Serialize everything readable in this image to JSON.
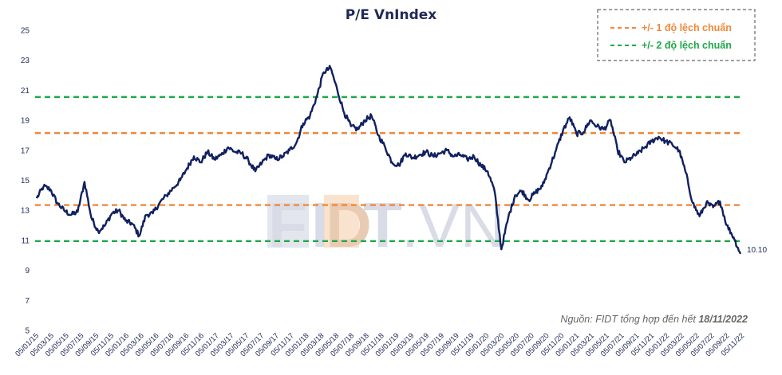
{
  "chart_data": {
    "type": "line",
    "title": "P/E VnIndex",
    "watermark": "FIDT.VN",
    "source_prefix": "Nguồn: FIDT tổng hợp đến hết ",
    "source_date": "18/11/2022",
    "yticks": [
      5,
      7,
      9,
      11,
      13,
      15,
      17,
      19,
      21,
      23,
      25
    ],
    "ylim": [
      5,
      25
    ],
    "xlabels": [
      "05/01/15",
      "05/03/15",
      "05/05/15",
      "05/07/15",
      "05/09/15",
      "05/11/15",
      "05/01/16",
      "05/03/16",
      "05/05/16",
      "05/07/16",
      "05/09/16",
      "05/11/16",
      "05/01/17",
      "05/03/17",
      "05/05/17",
      "05/07/17",
      "05/09/17",
      "05/11/17",
      "05/01/18",
      "05/03/18",
      "05/05/18",
      "05/07/18",
      "05/09/18",
      "05/11/18",
      "05/01/19",
      "05/03/19",
      "05/05/19",
      "05/07/19",
      "05/09/19",
      "05/11/19",
      "05/01/20",
      "05/03/20",
      "05/05/20",
      "05/07/20",
      "05/09/20",
      "05/11/20",
      "05/01/21",
      "05/03/21",
      "05/05/21",
      "05/07/21",
      "05/09/21",
      "05/11/21",
      "05/01/22",
      "05/03/22",
      "05/05/22",
      "05/07/22",
      "05/09/22",
      "05/11/22"
    ],
    "reference_lines": [
      {
        "label": "+/- 1 độ lệch chuẩn",
        "color": "#f0883a",
        "values": [
          18.15,
          13.35
        ]
      },
      {
        "label": "+/- 2 độ lệch chuẩn",
        "color": "#1fa84a",
        "values": [
          20.55,
          10.95
        ]
      }
    ],
    "series": [
      {
        "color": "#102060",
        "last_value_label": "10.10",
        "values": [
          13.8,
          14.6,
          14.4,
          13.5,
          13.0,
          12.7,
          12.9,
          14.9,
          12.5,
          11.6,
          12.0,
          12.8,
          13.0,
          12.3,
          12.1,
          11.3,
          12.7,
          12.8,
          13.5,
          14.0,
          14.5,
          15.0,
          15.8,
          16.6,
          16.2,
          16.9,
          16.4,
          16.7,
          17.2,
          16.9,
          16.8,
          16.3,
          15.6,
          16.2,
          16.7,
          16.4,
          16.6,
          17.0,
          17.5,
          18.8,
          19.3,
          20.6,
          22.2,
          22.5,
          21.0,
          19.5,
          18.6,
          18.4,
          19.0,
          19.3,
          18.0,
          17.2,
          16.2,
          16.0,
          16.8,
          16.5,
          16.7,
          16.9,
          16.6,
          16.8,
          17.0,
          16.6,
          16.7,
          16.4,
          16.6,
          16.0,
          15.6,
          14.3,
          10.4,
          12.5,
          14.0,
          14.3,
          13.7,
          14.2,
          14.6,
          15.8,
          17.0,
          18.3,
          19.2,
          18.1,
          18.2,
          19.0,
          18.6,
          18.4,
          19.0,
          17.0,
          16.2,
          16.5,
          16.8,
          17.2,
          17.6,
          17.9,
          17.6,
          17.4,
          17.0,
          15.5,
          13.5,
          12.6,
          13.5,
          13.2,
          13.6,
          12.0,
          11.2,
          10.1
        ]
      }
    ]
  }
}
